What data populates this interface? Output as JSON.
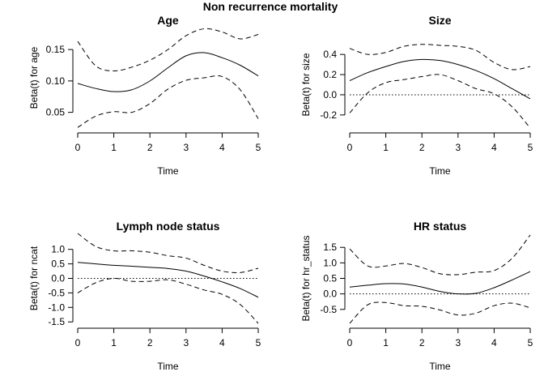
{
  "suptitle": "Non recurrence mortality",
  "chart_data": [
    {
      "type": "line",
      "title": "Age",
      "xlabel": "Time",
      "ylabel": "Beta(t) for age",
      "xlim": [
        0,
        5
      ],
      "ylim": [
        0.025,
        0.185
      ],
      "xticks": [
        0,
        1,
        2,
        3,
        4,
        5
      ],
      "yticks": [
        0.05,
        0.1,
        0.15
      ],
      "ytick_labels": [
        "0.05",
        "0.10",
        "0.15"
      ],
      "zero_line": false,
      "x": [
        0,
        0.5,
        1,
        1.5,
        2,
        2.5,
        3,
        3.5,
        4,
        4.5,
        5
      ],
      "series": [
        {
          "role": "estimate",
          "values": [
            0.096,
            0.088,
            0.083,
            0.086,
            0.1,
            0.121,
            0.14,
            0.145,
            0.137,
            0.125,
            0.108
          ]
        },
        {
          "role": "upper",
          "values": [
            0.163,
            0.124,
            0.116,
            0.122,
            0.133,
            0.15,
            0.172,
            0.183,
            0.178,
            0.167,
            0.174
          ]
        },
        {
          "role": "lower",
          "values": [
            0.026,
            0.044,
            0.051,
            0.05,
            0.064,
            0.087,
            0.101,
            0.105,
            0.107,
            0.086,
            0.04
          ]
        }
      ]
    },
    {
      "type": "line",
      "title": "Size",
      "xlabel": "Time",
      "ylabel": "Beta(t) for size",
      "xlim": [
        0,
        5
      ],
      "ylim": [
        -0.33,
        0.53
      ],
      "xticks": [
        0,
        1,
        2,
        3,
        4,
        5
      ],
      "yticks": [
        -0.2,
        0.0,
        0.2,
        0.4
      ],
      "ytick_labels": [
        "-0.2",
        "0.0",
        "0.2",
        "0.4"
      ],
      "zero_line": true,
      "x": [
        0,
        0.5,
        1,
        1.5,
        2,
        2.5,
        3,
        3.5,
        4,
        4.5,
        5
      ],
      "series": [
        {
          "role": "estimate",
          "values": [
            0.14,
            0.22,
            0.28,
            0.33,
            0.35,
            0.34,
            0.3,
            0.24,
            0.16,
            0.06,
            -0.04
          ]
        },
        {
          "role": "upper",
          "values": [
            0.46,
            0.4,
            0.42,
            0.48,
            0.5,
            0.49,
            0.48,
            0.44,
            0.32,
            0.25,
            0.28
          ]
        },
        {
          "role": "lower",
          "values": [
            -0.18,
            0.02,
            0.12,
            0.15,
            0.18,
            0.2,
            0.14,
            0.06,
            0.01,
            -0.12,
            -0.33
          ]
        }
      ]
    },
    {
      "type": "line",
      "title": "Lymph node status",
      "xlabel": "Time",
      "ylabel": "Beta(t) for ncat",
      "xlim": [
        0,
        5
      ],
      "ylim": [
        -1.55,
        1.55
      ],
      "xticks": [
        0,
        1,
        2,
        3,
        4,
        5
      ],
      "yticks": [
        -1.5,
        -1.0,
        -0.5,
        0.0,
        0.5,
        1.0
      ],
      "ytick_labels": [
        "-1.5",
        "-1.0",
        "-0.5",
        "0.0",
        "0.5",
        "1.0"
      ],
      "zero_line": true,
      "x": [
        0,
        0.5,
        1,
        1.5,
        2,
        2.5,
        3,
        3.5,
        4,
        4.5,
        5
      ],
      "series": [
        {
          "role": "estimate",
          "values": [
            0.55,
            0.5,
            0.45,
            0.42,
            0.38,
            0.34,
            0.25,
            0.08,
            -0.12,
            -0.35,
            -0.65
          ]
        },
        {
          "role": "upper",
          "values": [
            1.55,
            1.1,
            0.95,
            0.95,
            0.9,
            0.78,
            0.7,
            0.45,
            0.25,
            0.2,
            0.35
          ]
        },
        {
          "role": "lower",
          "values": [
            -0.5,
            -0.15,
            0.0,
            -0.1,
            -0.1,
            -0.05,
            -0.2,
            -0.4,
            -0.55,
            -0.9,
            -1.55
          ]
        }
      ]
    },
    {
      "type": "line",
      "title": "HR status",
      "xlabel": "Time",
      "ylabel": "Beta(t) for hr_status",
      "xlim": [
        0,
        5
      ],
      "ylim": [
        -0.95,
        1.95
      ],
      "xticks": [
        0,
        1,
        2,
        3,
        4,
        5
      ],
      "yticks": [
        -0.5,
        0.0,
        0.5,
        1.0,
        1.5
      ],
      "ytick_labels": [
        "-0.5",
        "0.0",
        "0.5",
        "1.0",
        "1.5"
      ],
      "zero_line": true,
      "x": [
        0,
        0.5,
        1,
        1.5,
        2,
        2.5,
        3,
        3.5,
        4,
        4.5,
        5
      ],
      "series": [
        {
          "role": "estimate",
          "values": [
            0.22,
            0.28,
            0.33,
            0.32,
            0.22,
            0.08,
            0.0,
            0.02,
            0.2,
            0.45,
            0.72
          ]
        },
        {
          "role": "upper",
          "values": [
            1.45,
            0.9,
            0.9,
            0.98,
            0.85,
            0.65,
            0.62,
            0.7,
            0.75,
            1.15,
            1.9
          ]
        },
        {
          "role": "lower",
          "values": [
            -0.95,
            -0.35,
            -0.28,
            -0.38,
            -0.4,
            -0.52,
            -0.68,
            -0.62,
            -0.38,
            -0.3,
            -0.45
          ]
        }
      ]
    }
  ]
}
